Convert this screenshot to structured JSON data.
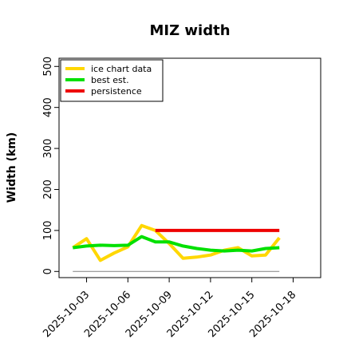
{
  "chart_data": {
    "type": "line",
    "title": "MIZ width",
    "xlabel": "",
    "ylabel": "Width (km)",
    "x_ticks": [
      "2025-10-03",
      "2025-10-06",
      "2025-10-09",
      "2025-10-12",
      "2025-10-15",
      "2025-10-18"
    ],
    "y_ticks": [
      0,
      100,
      200,
      300,
      400,
      500
    ],
    "xlim": [
      "2025-10-01",
      "2025-10-20"
    ],
    "ylim": [
      -15,
      520
    ],
    "legend_position": "top-left",
    "zero_reference_line": {
      "color": "#808080",
      "x": [
        "2025-10-02",
        "2025-10-17"
      ],
      "y": 0
    },
    "series": [
      {
        "name": "ice chart data",
        "color": "#FFD700",
        "x": [
          "2025-10-02",
          "2025-10-03",
          "2025-10-04",
          "2025-10-05",
          "2025-10-06",
          "2025-10-07",
          "2025-10-08",
          "2025-10-09",
          "2025-10-10",
          "2025-10-11",
          "2025-10-12",
          "2025-10-13",
          "2025-10-14",
          "2025-10-15",
          "2025-10-16",
          "2025-10-17"
        ],
        "values": [
          58,
          80,
          27,
          45,
          60,
          112,
          100,
          68,
          32,
          35,
          40,
          52,
          58,
          38,
          40,
          82
        ]
      },
      {
        "name": "best est.",
        "color": "#00E000",
        "x": [
          "2025-10-02",
          "2025-10-03",
          "2025-10-04",
          "2025-10-05",
          "2025-10-06",
          "2025-10-07",
          "2025-10-08",
          "2025-10-09",
          "2025-10-10",
          "2025-10-11",
          "2025-10-12",
          "2025-10-13",
          "2025-10-14",
          "2025-10-15",
          "2025-10-16",
          "2025-10-17"
        ],
        "values": [
          58,
          62,
          64,
          63,
          64,
          85,
          72,
          72,
          62,
          56,
          52,
          50,
          52,
          50,
          56,
          58
        ]
      },
      {
        "name": "persistence",
        "color": "#EE0000",
        "x": [
          "2025-10-08",
          "2025-10-17"
        ],
        "values": [
          100,
          100
        ]
      }
    ]
  }
}
